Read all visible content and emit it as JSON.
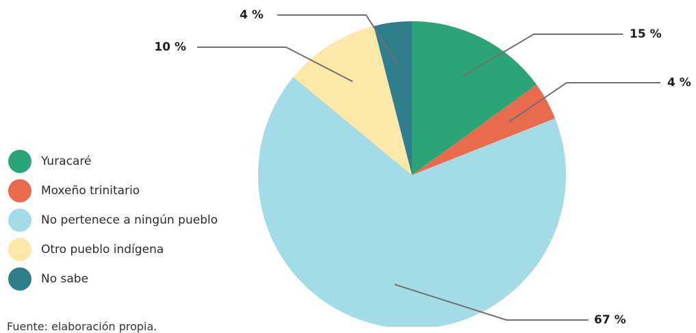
{
  "chart_data": {
    "type": "pie",
    "start_angle_deg": 0,
    "direction": "clockwise",
    "slices": [
      {
        "label": "Yuracaré",
        "value": 15,
        "value_label": "15 %",
        "color": "#2ba478"
      },
      {
        "label": "Moxeño trinitario",
        "value": 4,
        "value_label": "4 %",
        "color": "#e96b4d"
      },
      {
        "label": "No pertenece a ningún pueblo",
        "value": 67,
        "value_label": "67 %",
        "color": "#a3dbe6"
      },
      {
        "label": "Otro pueblo indígena",
        "value": 10,
        "value_label": "10 %",
        "color": "#fde9a7"
      },
      {
        "label": "No sabe",
        "value": 4,
        "value_label": "4 %",
        "color": "#2e7e8c"
      }
    ],
    "legend_placement": "left"
  },
  "leader_color": "#707070",
  "source_text": "Fuente: elaboración propia."
}
